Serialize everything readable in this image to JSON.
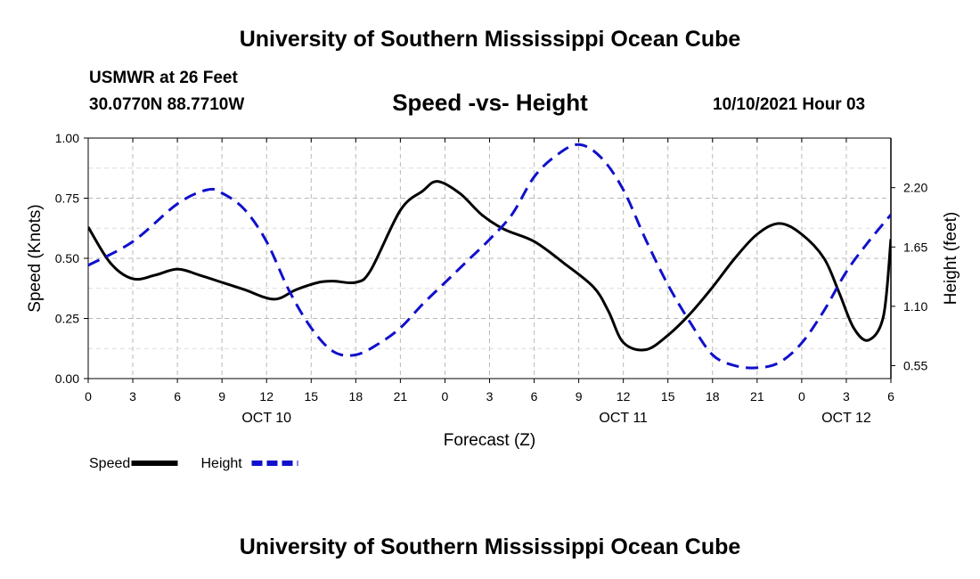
{
  "header": {
    "title": "University of Southern Mississippi Ocean Cube",
    "station": "USMWR at 26 Feet",
    "coords": "30.0770N  88.7710W",
    "datetime": "10/10/2021 Hour 03"
  },
  "footer": {
    "title": "University of Southern Mississippi Ocean Cube"
  },
  "chart_data": {
    "type": "line",
    "title": "Speed -vs- Height",
    "xlabel": "Forecast (Z)",
    "ylabel": "Speed (Knots)",
    "y2label": "Height (feet)",
    "xlim": [
      0,
      54
    ],
    "ylim": [
      0,
      1.0
    ],
    "y2lim": [
      0.43,
      2.66
    ],
    "grid": true,
    "x_ticks": [
      0,
      3,
      6,
      9,
      12,
      15,
      18,
      21,
      24,
      27,
      30,
      33,
      36,
      39,
      42,
      45,
      48,
      51,
      54
    ],
    "x_tick_labels": [
      "0",
      "3",
      "6",
      "9",
      "12",
      "15",
      "18",
      "21",
      "0",
      "3",
      "6",
      "9",
      "12",
      "15",
      "18",
      "21",
      "0",
      "3",
      "6"
    ],
    "y_ticks": [
      0,
      0.25,
      0.5,
      0.75,
      1.0
    ],
    "y_tick_labels": [
      "0.00",
      "0.25",
      "0.50",
      "0.75",
      "1.00"
    ],
    "y2_ticks": [
      0.55,
      1.1,
      1.65,
      2.2
    ],
    "y2_tick_labels": [
      "0.55",
      "1.10",
      "1.65",
      "2.20"
    ],
    "day_labels": [
      {
        "x": 12,
        "label": "OCT 10"
      },
      {
        "x": 36,
        "label": "OCT 11"
      },
      {
        "x": 51,
        "label": "OCT 12"
      }
    ],
    "legend_position": "bottom-left",
    "series": [
      {
        "name": "Speed",
        "axis": "left",
        "color": "#000000",
        "style": "solid",
        "x": [
          0,
          1.5,
          3,
          4.5,
          6,
          7.5,
          9,
          10.5,
          12.5,
          14,
          15.5,
          16.5,
          18,
          19,
          21,
          22.5,
          23.5,
          25,
          26.5,
          28,
          30,
          32,
          34,
          35,
          36,
          37.5,
          39,
          40.5,
          42,
          43.5,
          45,
          46.5,
          48,
          49.5,
          50.5,
          51.5,
          52.5,
          53.5,
          54
        ],
        "values": [
          0.63,
          0.48,
          0.415,
          0.43,
          0.455,
          0.43,
          0.4,
          0.37,
          0.33,
          0.37,
          0.4,
          0.405,
          0.4,
          0.45,
          0.7,
          0.78,
          0.82,
          0.77,
          0.68,
          0.62,
          0.57,
          0.48,
          0.38,
          0.28,
          0.15,
          0.12,
          0.18,
          0.27,
          0.38,
          0.5,
          0.6,
          0.645,
          0.6,
          0.5,
          0.36,
          0.21,
          0.16,
          0.26,
          0.58
        ]
      },
      {
        "name": "Height",
        "axis": "right",
        "color": "#1010cc",
        "style": "dashed",
        "x": [
          0,
          3,
          6,
          8,
          9,
          10.5,
          12,
          13.5,
          15,
          16.5,
          18,
          19.5,
          21,
          22.5,
          24,
          25.5,
          27,
          28.5,
          30,
          31.5,
          33,
          34.5,
          36,
          37.5,
          39,
          40.5,
          42,
          43.5,
          45,
          46.5,
          48,
          49.5,
          51,
          52.5,
          54
        ],
        "values": [
          1.48,
          1.7,
          2.05,
          2.18,
          2.15,
          2.0,
          1.7,
          1.25,
          0.9,
          0.68,
          0.65,
          0.75,
          0.9,
          1.12,
          1.32,
          1.52,
          1.72,
          1.95,
          2.3,
          2.5,
          2.6,
          2.48,
          2.18,
          1.72,
          1.3,
          0.95,
          0.65,
          0.55,
          0.53,
          0.58,
          0.76,
          1.06,
          1.42,
          1.7,
          1.95
        ]
      }
    ]
  }
}
